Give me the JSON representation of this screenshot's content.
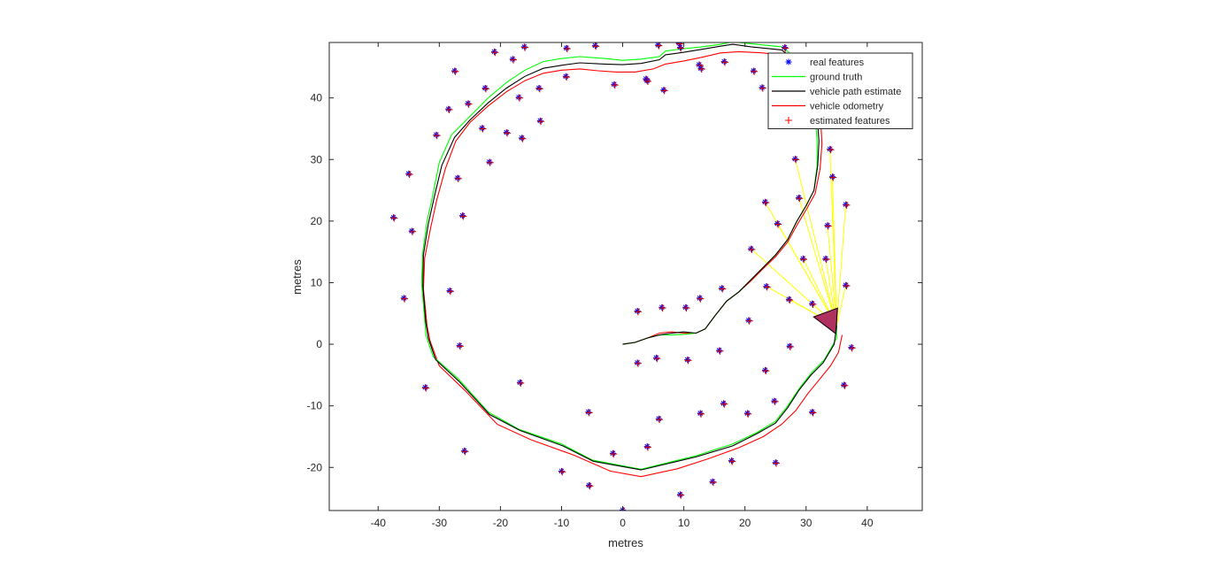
{
  "chart_data": {
    "type": "scatter",
    "xlabel": "metres",
    "ylabel": "metres",
    "xlim": [
      -48,
      49
    ],
    "ylim": [
      -27,
      49
    ],
    "xticks": [
      -40,
      -30,
      -20,
      -10,
      0,
      10,
      20,
      30,
      40
    ],
    "yticks": [
      -20,
      -10,
      0,
      10,
      20,
      30,
      40
    ],
    "grid": false,
    "legend_position": "top-right",
    "legend": [
      {
        "label": "real features",
        "marker": "asterisk",
        "color": "#0000ff"
      },
      {
        "label": "ground truth",
        "marker": "line",
        "color": "#00ff00"
      },
      {
        "label": "vehicle path estimate",
        "marker": "line",
        "color": "#000000"
      },
      {
        "label": "vehicle odometry",
        "marker": "line",
        "color": "#ff0000"
      },
      {
        "label": "estimated features",
        "marker": "plus",
        "color": "#ff0000"
      }
    ],
    "colors": {
      "real_features": "#0000ff",
      "estimated_features": "#cc0000",
      "ground_truth": "#00ff00",
      "path_estimate": "#000000",
      "odometry": "#ff0000",
      "observations": "#ffff00",
      "vehicle": "#b03060"
    },
    "features": [
      [
        -37.5,
        20.6
      ],
      [
        -35.8,
        7.5
      ],
      [
        -35,
        27.7
      ],
      [
        -34.5,
        18.4
      ],
      [
        -32.3,
        -7
      ],
      [
        -30.5,
        34
      ],
      [
        -28.5,
        38.2
      ],
      [
        -28.3,
        8.7
      ],
      [
        -27.5,
        44.4
      ],
      [
        -27,
        27
      ],
      [
        -26.7,
        -0.2
      ],
      [
        -26.2,
        20.9
      ],
      [
        -25.9,
        -17.3
      ],
      [
        -25.3,
        39.1
      ],
      [
        -23,
        35.1
      ],
      [
        -22.5,
        41.6
      ],
      [
        -21.8,
        29.6
      ],
      [
        -21,
        47.5
      ],
      [
        -19,
        34.4
      ],
      [
        -18,
        46.3
      ],
      [
        -17,
        40.1
      ],
      [
        -16.8,
        -6.2
      ],
      [
        -16.5,
        33.5
      ],
      [
        -16.1,
        48.3
      ],
      [
        -13.7,
        41.6
      ],
      [
        -13.5,
        36.3
      ],
      [
        -10,
        -20.6
      ],
      [
        -9.3,
        43.5
      ],
      [
        -9.2,
        48.1
      ],
      [
        -5.6,
        -11
      ],
      [
        -5.5,
        -22.9
      ],
      [
        -4.5,
        48.5
      ],
      [
        -1.6,
        -17.7
      ],
      [
        -1.4,
        42.2
      ],
      [
        0,
        -26.9
      ],
      [
        2.4,
        5.4
      ],
      [
        2.4,
        -3
      ],
      [
        3.8,
        43.1
      ],
      [
        4,
        42.8
      ],
      [
        4,
        -16.6
      ],
      [
        5.5,
        -2.2
      ],
      [
        5.8,
        48.6
      ],
      [
        5.9,
        -12.1
      ],
      [
        6.4,
        6
      ],
      [
        6.7,
        41.3
      ],
      [
        9.2,
        48.9
      ],
      [
        9.4,
        48.2
      ],
      [
        9.4,
        -24.4
      ],
      [
        10.3,
        6
      ],
      [
        10.6,
        -2.5
      ],
      [
        12.6,
        7.5
      ],
      [
        12.5,
        45.4
      ],
      [
        12.7,
        -11.2
      ],
      [
        12.8,
        44.8
      ],
      [
        14.7,
        -22.3
      ],
      [
        15.8,
        -1
      ],
      [
        16.2,
        9.1
      ],
      [
        16.6,
        45.9
      ],
      [
        16.5,
        -9.6
      ],
      [
        17.8,
        -18.9
      ],
      [
        20.4,
        -11.2
      ],
      [
        20.6,
        3.9
      ],
      [
        21,
        15.5
      ],
      [
        21.4,
        44.4
      ],
      [
        22.8,
        41.7
      ],
      [
        23.3,
        -4.2
      ],
      [
        23.3,
        23.1
      ],
      [
        23.5,
        9.4
      ],
      [
        24.8,
        -9.2
      ],
      [
        25,
        -19.2
      ],
      [
        25.3,
        19.6
      ],
      [
        26.5,
        48.2
      ],
      [
        27.2,
        7.3
      ],
      [
        27.3,
        -0.3
      ],
      [
        28.2,
        30.1
      ],
      [
        28.8,
        23.8
      ],
      [
        29.5,
        13.9
      ],
      [
        31,
        6.6
      ],
      [
        31,
        -11
      ],
      [
        33.2,
        13.9
      ],
      [
        33.5,
        19.3
      ],
      [
        33.9,
        31.7
      ],
      [
        34.3,
        27.2
      ],
      [
        36.2,
        -6.6
      ],
      [
        36.5,
        22.7
      ],
      [
        36.5,
        9.6
      ],
      [
        37.4,
        -0.5
      ]
    ],
    "ground_truth": [
      [
        0,
        0
      ],
      [
        2,
        0.3
      ],
      [
        4,
        1
      ],
      [
        6,
        1.5
      ],
      [
        8,
        1.5
      ],
      [
        10,
        1.6
      ],
      [
        12,
        1.8
      ],
      [
        13.5,
        2.5
      ],
      [
        15,
        4.5
      ],
      [
        17,
        7
      ],
      [
        19,
        8.5
      ],
      [
        21,
        10.5
      ],
      [
        23,
        12.5
      ],
      [
        25,
        14.5
      ],
      [
        27,
        17
      ],
      [
        28.5,
        20
      ],
      [
        30,
        22.5
      ],
      [
        31.3,
        25
      ],
      [
        31.8,
        29
      ],
      [
        31.8,
        33
      ],
      [
        31.5,
        37
      ],
      [
        31,
        40.5
      ],
      [
        30.4,
        43
      ],
      [
        29,
        46
      ],
      [
        26,
        48.3
      ],
      [
        21,
        48.8
      ],
      [
        18,
        49.1
      ],
      [
        16,
        48.7
      ],
      [
        13,
        48.3
      ],
      [
        10,
        48
      ],
      [
        7,
        47.6
      ],
      [
        6,
        46.7
      ],
      [
        3,
        46.3
      ],
      [
        0,
        46.1
      ],
      [
        -3,
        46.4
      ],
      [
        -7,
        46.7
      ],
      [
        -10,
        46.4
      ],
      [
        -13,
        45.9
      ],
      [
        -16,
        44.5
      ],
      [
        -19,
        42.5
      ],
      [
        -22,
        40
      ],
      [
        -25,
        37
      ],
      [
        -28,
        34
      ],
      [
        -30,
        29.5
      ],
      [
        -31,
        24.5
      ],
      [
        -32,
        20
      ],
      [
        -32.7,
        15
      ],
      [
        -32.9,
        10
      ],
      [
        -32.4,
        4
      ],
      [
        -32.2,
        1.5
      ],
      [
        -31,
        -2
      ],
      [
        -27,
        -5.5
      ],
      [
        -22,
        -11
      ],
      [
        -17,
        -13.8
      ],
      [
        -10,
        -16.2
      ],
      [
        -5,
        -18.8
      ],
      [
        3,
        -20.3
      ],
      [
        12,
        -18.1
      ],
      [
        18,
        -16.2
      ],
      [
        22,
        -14.3
      ],
      [
        25,
        -12.5
      ],
      [
        27,
        -10
      ],
      [
        29,
        -7
      ],
      [
        31,
        -4.5
      ],
      [
        33,
        -2.5
      ],
      [
        35,
        1
      ],
      [
        35,
        3.5
      ]
    ],
    "path_estimate": [
      [
        0,
        0
      ],
      [
        2,
        0.3
      ],
      [
        4,
        1
      ],
      [
        6,
        1.5
      ],
      [
        8,
        1.8
      ],
      [
        10,
        2
      ],
      [
        12,
        1.8
      ],
      [
        13.5,
        2.5
      ],
      [
        15,
        4.5
      ],
      [
        17,
        7
      ],
      [
        19,
        8.5
      ],
      [
        21,
        10.5
      ],
      [
        23,
        12.5
      ],
      [
        25,
        14.5
      ],
      [
        27,
        17
      ],
      [
        28.5,
        20
      ],
      [
        30,
        22.5
      ],
      [
        31.3,
        25
      ],
      [
        31.9,
        29
      ],
      [
        32.1,
        33
      ],
      [
        31.8,
        37
      ],
      [
        31.4,
        40.5
      ],
      [
        30.8,
        42.8
      ],
      [
        29,
        45.5
      ],
      [
        26,
        47.8
      ],
      [
        21,
        48.3
      ],
      [
        18,
        48.7
      ],
      [
        16,
        48.4
      ],
      [
        13,
        47.9
      ],
      [
        10,
        47.4
      ],
      [
        7,
        47
      ],
      [
        6,
        46.2
      ],
      [
        3,
        45.6
      ],
      [
        0,
        45.4
      ],
      [
        -3,
        45.5
      ],
      [
        -7,
        45.7
      ],
      [
        -10,
        45.3
      ],
      [
        -13,
        44.8
      ],
      [
        -16,
        43.5
      ],
      [
        -19,
        41.6
      ],
      [
        -22,
        39.2
      ],
      [
        -25,
        36.4
      ],
      [
        -27.5,
        33.6
      ],
      [
        -29.6,
        29
      ],
      [
        -30.8,
        24
      ],
      [
        -31.8,
        19.5
      ],
      [
        -32.6,
        14.5
      ],
      [
        -32.7,
        9.5
      ],
      [
        -32.2,
        3.5
      ],
      [
        -31.8,
        1
      ],
      [
        -30.6,
        -2.5
      ],
      [
        -26.8,
        -6
      ],
      [
        -21.8,
        -11.4
      ],
      [
        -16.8,
        -14
      ],
      [
        -9.8,
        -16.5
      ],
      [
        -4.8,
        -19
      ],
      [
        3,
        -20.4
      ],
      [
        12,
        -18.3
      ],
      [
        18,
        -16.5
      ],
      [
        22,
        -14.5
      ],
      [
        25,
        -12.8
      ],
      [
        27,
        -10.3
      ],
      [
        28.8,
        -7.5
      ],
      [
        30.8,
        -5
      ],
      [
        32.8,
        -3
      ],
      [
        34.6,
        0
      ],
      [
        35,
        3
      ]
    ],
    "odometry": [
      [
        0,
        0
      ],
      [
        2,
        0.3
      ],
      [
        4,
        1
      ],
      [
        6,
        1.8
      ],
      [
        8,
        2
      ],
      [
        10,
        1.8
      ],
      [
        12,
        1.8
      ],
      [
        13.5,
        2.5
      ],
      [
        15,
        4.5
      ],
      [
        17,
        7
      ],
      [
        19,
        8.5
      ],
      [
        21,
        10.3
      ],
      [
        23,
        12.3
      ],
      [
        25,
        14.2
      ],
      [
        27,
        16.6
      ],
      [
        28.6,
        19.5
      ],
      [
        30.1,
        22
      ],
      [
        31.5,
        24.5
      ],
      [
        32.3,
        28.5
      ],
      [
        32.6,
        32.5
      ],
      [
        32.4,
        36.5
      ],
      [
        32,
        40
      ],
      [
        31.4,
        42.5
      ],
      [
        30.2,
        44.8
      ],
      [
        28,
        46.6
      ],
      [
        23,
        47.3
      ],
      [
        19,
        47.5
      ],
      [
        16,
        47.3
      ],
      [
        13,
        46.6
      ],
      [
        10,
        46
      ],
      [
        7,
        45.5
      ],
      [
        5,
        44.7
      ],
      [
        2,
        44.2
      ],
      [
        -1,
        44.2
      ],
      [
        -4,
        44.4
      ],
      [
        -7,
        44.7
      ],
      [
        -10,
        44.5
      ],
      [
        -13,
        44
      ],
      [
        -16,
        42.8
      ],
      [
        -19,
        41
      ],
      [
        -22,
        38.7
      ],
      [
        -25,
        36
      ],
      [
        -27.3,
        33
      ],
      [
        -29,
        28.5
      ],
      [
        -30.4,
        23.5
      ],
      [
        -31.4,
        19
      ],
      [
        -32.4,
        14
      ],
      [
        -32.6,
        9
      ],
      [
        -32,
        3
      ],
      [
        -31.5,
        0.5
      ],
      [
        -30,
        -3.5
      ],
      [
        -25.8,
        -7.5
      ],
      [
        -20.5,
        -13
      ],
      [
        -15,
        -15.5
      ],
      [
        -8,
        -18
      ],
      [
        -2,
        -20.6
      ],
      [
        3,
        -21.5
      ],
      [
        9,
        -20.2
      ],
      [
        14,
        -18.6
      ],
      [
        19,
        -16.8
      ],
      [
        23,
        -15
      ],
      [
        26,
        -13
      ],
      [
        28.3,
        -10.8
      ],
      [
        30.3,
        -8
      ],
      [
        32.2,
        -5.7
      ],
      [
        34,
        -3.5
      ],
      [
        35.3,
        -1.3
      ],
      [
        35.9,
        1.5
      ]
    ],
    "observations": [
      [
        21,
        15.5
      ],
      [
        23.3,
        23.1
      ],
      [
        23.5,
        9.4
      ],
      [
        25.3,
        19.6
      ],
      [
        27.2,
        7.3
      ],
      [
        28.2,
        30.1
      ],
      [
        28.8,
        23.8
      ],
      [
        29.5,
        13.9
      ],
      [
        31,
        6.6
      ],
      [
        33.2,
        13.9
      ],
      [
        33.5,
        19.3
      ],
      [
        33.9,
        31.7
      ],
      [
        34.3,
        27.2
      ],
      [
        36.5,
        22.7
      ],
      [
        36.5,
        9.6
      ]
    ],
    "vehicle": {
      "x": 35,
      "y": 3,
      "heading_deg": 80
    }
  }
}
